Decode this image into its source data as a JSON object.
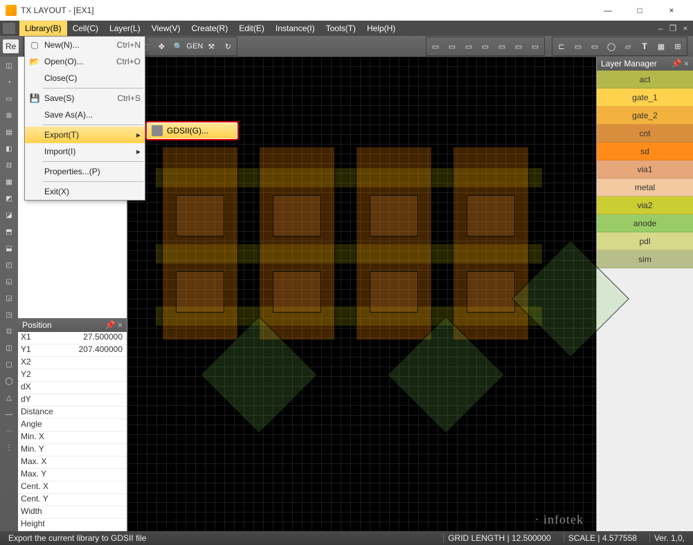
{
  "window": {
    "title": "TX LAYOUT - [EX1]",
    "min_icon": "—",
    "max_icon": "□",
    "close_icon": "×"
  },
  "menubar": {
    "items": [
      {
        "label": "Library(B)",
        "active": true
      },
      {
        "label": "Cell(C)"
      },
      {
        "label": "Layer(L)"
      },
      {
        "label": "View(V)"
      },
      {
        "label": "Create(R)"
      },
      {
        "label": "Edit(E)"
      },
      {
        "label": "Instance(I)"
      },
      {
        "label": "Tools(T)"
      },
      {
        "label": "Help(H)"
      }
    ]
  },
  "toolbar_left_label": "Re",
  "dropdown": {
    "items": [
      {
        "icon": "new",
        "label": "New(N)...",
        "shortcut": "Ctrl+N"
      },
      {
        "icon": "open",
        "label": "Open(O)...",
        "shortcut": "Ctrl+O"
      },
      {
        "icon": "",
        "label": "Close(C)",
        "shortcut": ""
      },
      {
        "sep": true
      },
      {
        "icon": "save",
        "label": "Save(S)",
        "shortcut": "Ctrl+S"
      },
      {
        "icon": "",
        "label": "Save As(A)...",
        "shortcut": ""
      },
      {
        "sep": true
      },
      {
        "icon": "",
        "label": "Export(T)",
        "shortcut": "",
        "arrow": true,
        "selected": true
      },
      {
        "icon": "",
        "label": "Import(I)",
        "shortcut": "",
        "arrow": true
      },
      {
        "sep": true
      },
      {
        "icon": "",
        "label": "Properties...(P)",
        "shortcut": ""
      },
      {
        "sep": true
      },
      {
        "icon": "",
        "label": "Exit(X)",
        "shortcut": ""
      }
    ]
  },
  "submenu": {
    "label": "GDSII(G)..."
  },
  "position_panel": {
    "title": "Position",
    "rows": [
      {
        "k": "X1",
        "v": "27.500000"
      },
      {
        "k": "Y1",
        "v": "207.400000"
      },
      {
        "k": "X2",
        "v": ""
      },
      {
        "k": "Y2",
        "v": ""
      },
      {
        "k": "dX",
        "v": ""
      },
      {
        "k": "dY",
        "v": ""
      },
      {
        "k": "Distance",
        "v": ""
      },
      {
        "k": "Angle",
        "v": ""
      },
      {
        "k": "Min. X",
        "v": ""
      },
      {
        "k": "Min. Y",
        "v": ""
      },
      {
        "k": "Max. X",
        "v": ""
      },
      {
        "k": "Max. Y",
        "v": ""
      },
      {
        "k": "Cent. X",
        "v": ""
      },
      {
        "k": "Cent. Y",
        "v": ""
      },
      {
        "k": "Width",
        "v": ""
      },
      {
        "k": "Height",
        "v": ""
      }
    ]
  },
  "layer_panel": {
    "title": "Layer Manager",
    "layers": [
      {
        "name": "act",
        "color": "#b3b84a"
      },
      {
        "name": "gate_1",
        "color": "#ffd24d"
      },
      {
        "name": "gate_2",
        "color": "#f3b23e"
      },
      {
        "name": "cnt",
        "color": "#d98e3e"
      },
      {
        "name": "sd",
        "color": "#ff8c1a"
      },
      {
        "name": "via1",
        "color": "#e6a77a"
      },
      {
        "name": "metal",
        "color": "#f2c9a0"
      },
      {
        "name": "via2",
        "color": "#cccc33"
      },
      {
        "name": "anode",
        "color": "#99cc66"
      },
      {
        "name": "pdl",
        "color": "#d6d98a"
      },
      {
        "name": "sim",
        "color": "#b8be8a"
      }
    ]
  },
  "statusbar": {
    "hint": "Export the current library to GDSII file",
    "grid_label": "GRID LENGTH",
    "grid_value": "12.500000",
    "scale_label": "SCALE",
    "scale_value": "4.577558",
    "version": "Ver. 1,0,"
  },
  "watermark": "infotek"
}
